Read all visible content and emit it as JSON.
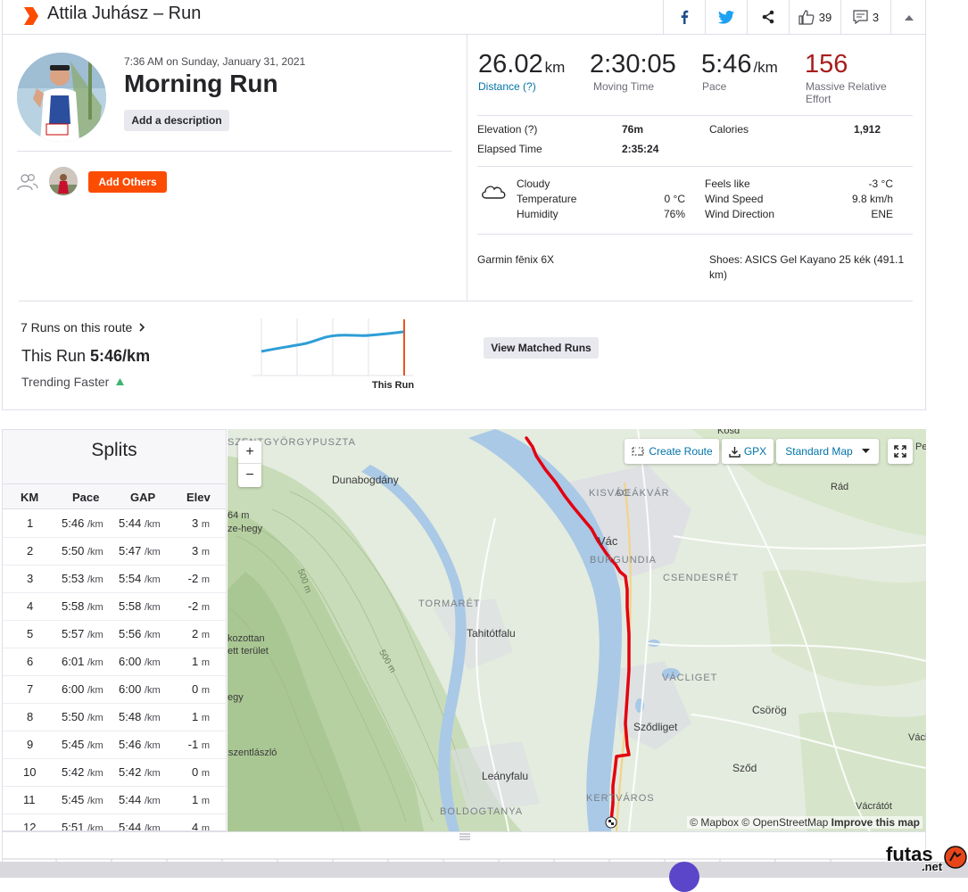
{
  "header": {
    "title": "Attila Juhász – Run",
    "kudos_count": "39",
    "comment_count": "3"
  },
  "activity": {
    "date": "7:36 AM on Sunday, January 31, 2021",
    "name": "Morning Run",
    "add_description": "Add a description",
    "add_others": "Add Others"
  },
  "stats": {
    "distance": {
      "value": "26.02",
      "unit": "km",
      "label": "Distance (?)"
    },
    "moving_time": {
      "value": "2:30:05",
      "label": "Moving Time"
    },
    "pace": {
      "value": "5:46",
      "unit": "/km",
      "label": "Pace"
    },
    "effort": {
      "value": "156",
      "label": "Massive Relative Effort"
    }
  },
  "details": {
    "elevation_label": "Elevation (?)",
    "elevation_value": "76m",
    "calories_label": "Calories",
    "calories_value": "1,912",
    "elapsed_label": "Elapsed Time",
    "elapsed_value": "2:35:24"
  },
  "weather": {
    "condition": "Cloudy",
    "temperature_label": "Temperature",
    "temperature_value": "0 °C",
    "humidity_label": "Humidity",
    "humidity_value": "76%",
    "feels_like_label": "Feels like",
    "feels_like_value": "-3 °C",
    "wind_speed_label": "Wind Speed",
    "wind_speed_value": "9.8 km/h",
    "wind_direction_label": "Wind Direction",
    "wind_direction_value": "ENE"
  },
  "gear": {
    "device": "Garmin fēnix 6X",
    "shoes": "Shoes: ASICS Gel Kayano 25 kék (491.1 km)"
  },
  "route": {
    "runs_label": "7 Runs on this route",
    "this_run_prefix": "This Run ",
    "this_run_pace": "5:46/km",
    "trend": "Trending Faster",
    "chart_marker_label": "This Run",
    "view_matched": "View Matched Runs"
  },
  "splits": {
    "title": "Splits",
    "headers": [
      "KM",
      "Pace",
      "GAP",
      "Elev"
    ],
    "pace_unit": "/km",
    "elev_unit": "m",
    "rows": [
      {
        "km": "1",
        "pace": "5:46",
        "gap": "5:44",
        "elev": "3"
      },
      {
        "km": "2",
        "pace": "5:50",
        "gap": "5:47",
        "elev": "3"
      },
      {
        "km": "3",
        "pace": "5:53",
        "gap": "5:54",
        "elev": "-2"
      },
      {
        "km": "4",
        "pace": "5:58",
        "gap": "5:58",
        "elev": "-2"
      },
      {
        "km": "5",
        "pace": "5:57",
        "gap": "5:56",
        "elev": "2"
      },
      {
        "km": "6",
        "pace": "6:01",
        "gap": "6:00",
        "elev": "1"
      },
      {
        "km": "7",
        "pace": "6:00",
        "gap": "6:00",
        "elev": "0"
      },
      {
        "km": "8",
        "pace": "5:50",
        "gap": "5:48",
        "elev": "1"
      },
      {
        "km": "9",
        "pace": "5:45",
        "gap": "5:46",
        "elev": "-1"
      },
      {
        "km": "10",
        "pace": "5:42",
        "gap": "5:42",
        "elev": "0"
      },
      {
        "km": "11",
        "pace": "5:45",
        "gap": "5:44",
        "elev": "1"
      },
      {
        "km": "12",
        "pace": "5:51",
        "gap": "5:44",
        "elev": "4"
      }
    ]
  },
  "map": {
    "create_route": "Create Route",
    "gpx": "GPX",
    "map_style": "Standard Map",
    "zoom_in": "+",
    "zoom_out": "−",
    "attribution_mapbox": "© Mapbox",
    "attribution_osm": "© OpenStreetMap",
    "improve": "Improve this map",
    "labels": {
      "szentgyorgypuszta": "SZENTGYÖRGYPUSZTA",
      "dunabogdany": "Dunabogdány",
      "kisvac": "KISVÁC",
      "deakvar": "DEÁKVÁR",
      "vac": "Vác",
      "burgundia": "BURGUNDIA",
      "csendesret": "CSENDESRÉT",
      "tormaret": "TORMARÉT",
      "tahitotfalu": "Tahitótfalu",
      "vacliget": "VÁCLIGET",
      "szodliget": "Sződliget",
      "csorog": "Csörög",
      "szod": "Sződ",
      "leanyfalu": "Leányfalu",
      "kertvaros": "KERTVÁROS",
      "boldogtanya": "BOLDOGTANYA",
      "vacratot": "Vácrátót",
      "rad": "Rád",
      "kosd": "Kosd",
      "vach": "Vách",
      "pe": "Pe",
      "m64": "64 m",
      "ze_hegy": "ze-hegy",
      "m500a": "500 m",
      "m500b": "500 m",
      "vedett1": "kozottan",
      "vedett2": "ett terület",
      "egy": "egy",
      "szentlaszlo": "szszentlászló"
    }
  },
  "watermark": {
    "text1": "futas",
    "text2": ".net"
  },
  "colors": {
    "brand": "#fc4c02",
    "route": "#e3000f",
    "link": "#0073a8",
    "effort": "#a71d1d",
    "trend": "#3cb371"
  }
}
